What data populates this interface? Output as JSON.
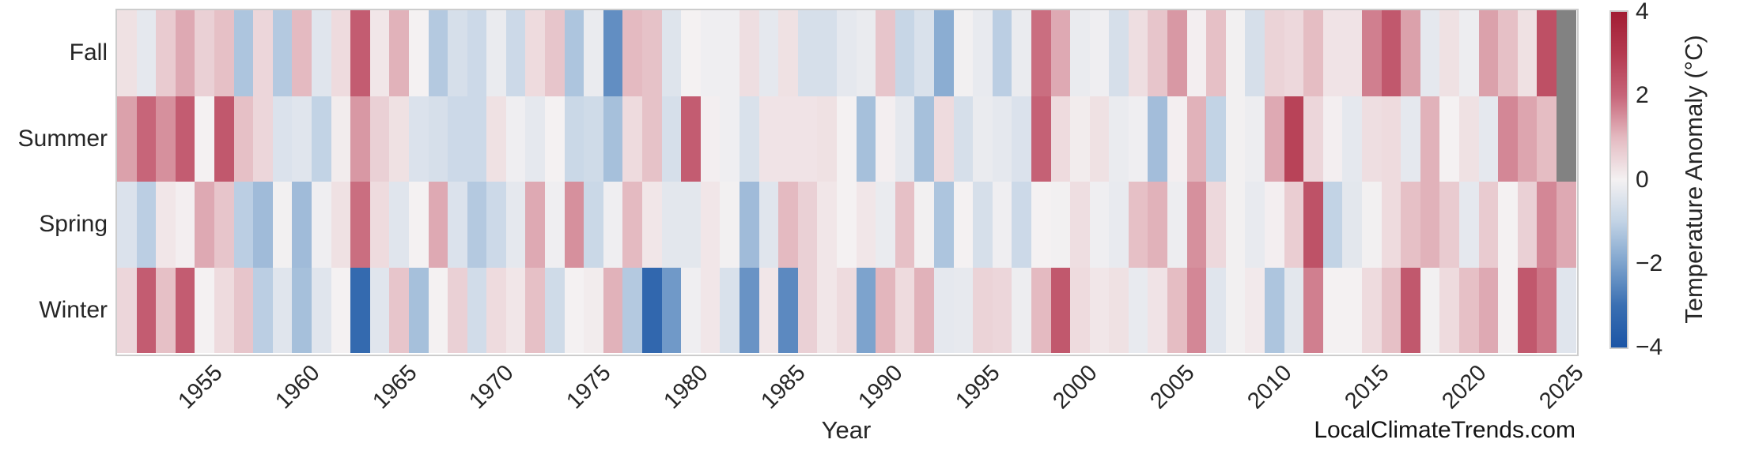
{
  "xlabel": "Year",
  "watermark": "LocalClimateTrends.com",
  "colorbar": {
    "label": "Temperature Anomaly (°C)",
    "ticks": [
      {
        "value": 4,
        "label": "4"
      },
      {
        "value": 2,
        "label": "2"
      },
      {
        "value": 0,
        "label": "0"
      },
      {
        "value": -2,
        "label": "−2"
      },
      {
        "value": -4,
        "label": "−4"
      }
    ]
  },
  "chart_data": {
    "type": "heatmap",
    "title": "",
    "xlabel": "Year",
    "ylabel": "",
    "legend_label": "Temperature Anomaly (°C)",
    "value_range": [
      -4,
      4
    ],
    "missing_color": "#828282",
    "colormap_stops": [
      [
        -4,
        "#1c55a5"
      ],
      [
        -3,
        "#3a6fb2"
      ],
      [
        -2,
        "#7da3cd"
      ],
      [
        -1,
        "#c2d3e5"
      ],
      [
        0,
        "#f4f1f2"
      ],
      [
        1,
        "#e4bac1"
      ],
      [
        2,
        "#c76579"
      ],
      [
        3,
        "#b43a50"
      ],
      [
        4,
        "#a21d33"
      ]
    ],
    "x": [
      1951,
      1952,
      1953,
      1954,
      1955,
      1956,
      1957,
      1958,
      1959,
      1960,
      1961,
      1962,
      1963,
      1964,
      1965,
      1966,
      1967,
      1968,
      1969,
      1970,
      1971,
      1972,
      1973,
      1974,
      1975,
      1976,
      1977,
      1978,
      1979,
      1980,
      1981,
      1982,
      1983,
      1984,
      1985,
      1986,
      1987,
      1988,
      1989,
      1990,
      1991,
      1992,
      1993,
      1994,
      1995,
      1996,
      1997,
      1998,
      1999,
      2000,
      2001,
      2002,
      2003,
      2004,
      2005,
      2006,
      2007,
      2008,
      2009,
      2010,
      2011,
      2012,
      2013,
      2014,
      2015,
      2016,
      2017,
      2018,
      2019,
      2020,
      2021,
      2022,
      2023,
      2024,
      2025
    ],
    "xticks": [
      1955,
      1960,
      1965,
      1970,
      1975,
      1980,
      1985,
      1990,
      1995,
      2000,
      2005,
      2010,
      2015,
      2020,
      2025
    ],
    "categories": [
      "Fall",
      "Summer",
      "Spring",
      "Winter"
    ],
    "series": [
      {
        "name": "Fall",
        "values": [
          0.3,
          -0.3,
          0.7,
          1.2,
          0.6,
          0.9,
          -1.3,
          0.5,
          -1.2,
          1.0,
          -0.4,
          0.4,
          2.2,
          0.2,
          1.1,
          0.0,
          -1.2,
          -0.6,
          -0.8,
          -0.2,
          -0.8,
          0.4,
          0.8,
          -1.3,
          -0.2,
          -2.4,
          1.0,
          0.85,
          -0.45,
          0.0,
          -0.1,
          -0.1,
          0.35,
          -0.3,
          0.3,
          -0.6,
          -0.6,
          -0.3,
          -0.2,
          0.8,
          -0.9,
          -0.55,
          -1.8,
          -0.05,
          -0.25,
          -1.1,
          -0.2,
          1.9,
          1.2,
          -0.2,
          -0.1,
          -0.6,
          0.35,
          0.8,
          1.4,
          0.05,
          0.9,
          -0.05,
          -0.6,
          0.55,
          0.45,
          0.95,
          0.25,
          0.25,
          1.7,
          2.3,
          1.3,
          -0.3,
          0.3,
          -0.15,
          1.3,
          0.9,
          0.3,
          2.5,
          null
        ]
      },
      {
        "name": "Summer",
        "values": [
          1.3,
          2.0,
          1.5,
          2.2,
          0.0,
          2.3,
          0.9,
          0.5,
          -0.5,
          -0.4,
          -1.0,
          0.1,
          1.4,
          0.6,
          0.3,
          -0.5,
          -0.6,
          -0.8,
          -0.8,
          0.3,
          -0.1,
          -0.3,
          0.0,
          -0.85,
          -0.75,
          -1.4,
          0.4,
          0.85,
          -0.6,
          2.2,
          0.05,
          -0.1,
          -0.55,
          0.25,
          0.25,
          0.25,
          0.3,
          0.0,
          -1.4,
          0.05,
          -0.3,
          -1.4,
          0.4,
          -0.6,
          -0.2,
          -0.3,
          -0.5,
          2.1,
          0.4,
          0.1,
          0.3,
          -0.2,
          -0.1,
          -1.45,
          0.05,
          1.1,
          -1.0,
          -0.05,
          -0.15,
          1.2,
          2.8,
          0.5,
          0.05,
          -0.3,
          0.35,
          0.4,
          -0.3,
          1.1,
          0.0,
          0.3,
          -0.3,
          1.6,
          1.25,
          0.95,
          null
        ]
      },
      {
        "name": "Spring",
        "values": [
          -0.5,
          -1.1,
          0.2,
          0.05,
          1.2,
          0.8,
          -1.1,
          -1.5,
          -0.05,
          -1.5,
          -0.1,
          0.3,
          1.9,
          0.4,
          -0.4,
          0.0,
          1.2,
          -0.5,
          -1.2,
          -0.8,
          -0.3,
          1.2,
          -0.1,
          1.5,
          -0.85,
          -0.1,
          1.0,
          0.2,
          -0.35,
          -0.35,
          0.2,
          -0.05,
          -1.5,
          -0.4,
          1.0,
          0.6,
          0.2,
          0.0,
          0.2,
          -0.2,
          0.9,
          -0.05,
          -1.3,
          0.0,
          -0.6,
          -0.1,
          -0.8,
          0.0,
          -0.05,
          0.35,
          -0.1,
          -0.25,
          0.9,
          1.1,
          -0.15,
          1.5,
          0.45,
          -0.05,
          -0.25,
          0.05,
          0.65,
          2.45,
          -1.0,
          -0.35,
          -0.05,
          0.4,
          0.9,
          1.1,
          0.7,
          -0.3,
          0.7,
          0.0,
          0.6,
          1.6,
          1.2
        ]
      },
      {
        "name": "Winter",
        "values": [
          0.5,
          2.2,
          0.9,
          2.2,
          0.0,
          0.4,
          0.8,
          -1.1,
          -0.4,
          -1.4,
          -0.4,
          0.0,
          -3.2,
          -0.4,
          0.8,
          -1.4,
          0.0,
          0.6,
          -0.7,
          0.4,
          0.2,
          0.9,
          -0.75,
          0.0,
          0.1,
          1.1,
          -1.2,
          -3.3,
          -2.2,
          -0.1,
          0.2,
          -0.55,
          -2.3,
          0.2,
          -2.5,
          0.6,
          0.2,
          0.4,
          -2.0,
          1.05,
          0.4,
          1.1,
          -0.3,
          -0.27,
          0.55,
          0.5,
          -0.15,
          1.0,
          2.3,
          0.4,
          0.2,
          0.3,
          -0.25,
          0.25,
          0.95,
          1.6,
          -0.4,
          -0.05,
          0.15,
          -1.3,
          -0.35,
          1.7,
          0.0,
          0.0,
          0.4,
          0.9,
          2.3,
          -0.05,
          0.4,
          0.9,
          1.2,
          0.0,
          2.3,
          1.8,
          -0.4
        ]
      }
    ]
  }
}
